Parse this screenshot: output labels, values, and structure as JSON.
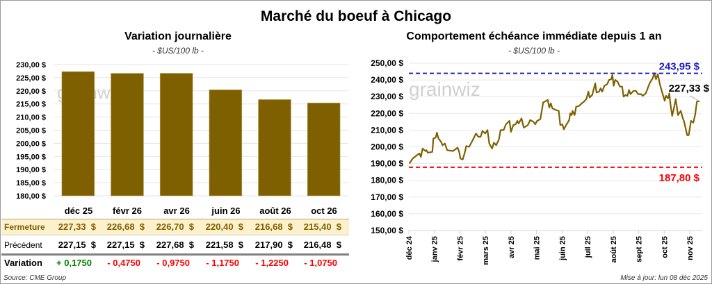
{
  "title": "Marché du boeuf à Chicago",
  "left": {
    "title": "Variation  journalière",
    "unit": "- $US/100 lb -",
    "table": {
      "columns": [
        "déc 25",
        "févr 26",
        "avr 26",
        "juin 26",
        "août 26",
        "oct 26"
      ],
      "rows": [
        {
          "label": "Fermeture",
          "values": [
            "227,33  $",
            "226,68  $",
            "226,70  $",
            "220,40  $",
            "216,68  $",
            "215,40  $"
          ]
        },
        {
          "label": "Précédent",
          "values": [
            "227,15  $",
            "227,15  $",
            "227,68  $",
            "221,58  $",
            "217,90  $",
            "216,48  $"
          ]
        },
        {
          "label": "Variation",
          "values": [
            "+ 0,1750",
            "- 0,4750",
            "- 0,9750",
            "- 1,1750",
            "- 1,2250",
            "- 1,0750"
          ]
        }
      ]
    },
    "source": "Source: CME Group"
  },
  "right": {
    "title": "Comportement échéance immédiate depuis 1 an",
    "unit": "- $US/100 lb -",
    "updated": "Mise à jour: lun 08 déc 2025"
  },
  "watermark": "grainwiz",
  "colors": {
    "bar": "#7f6000",
    "line": "#7f6000",
    "max": "#1f1fbf",
    "min": "#ff0000",
    "positive": "#008000",
    "negative": "#ff0000",
    "highlight": "#fdf1cc"
  },
  "chart_data": [
    {
      "type": "bar",
      "title": "Variation  journalière",
      "categories": [
        "déc 25",
        "févr 26",
        "avr 26",
        "juin 26",
        "août 26",
        "oct 26"
      ],
      "values": [
        227.33,
        226.68,
        226.7,
        220.4,
        216.68,
        215.4
      ],
      "ylim": [
        180,
        230
      ],
      "yticks": [
        "180,00 $",
        "185,00 $",
        "190,00 $",
        "195,00 $",
        "200,00 $",
        "205,00 $",
        "210,00 $",
        "215,00 $",
        "220,00 $",
        "225,00 $",
        "230,00 $"
      ],
      "grid": true
    },
    {
      "type": "line",
      "title": "Comportement échéance immédiate depuis 1 an",
      "xticks": [
        "déc 24",
        "janv 25",
        "févr 25",
        "mars 25",
        "avr 25",
        "mai 25",
        "juin 25",
        "juil 25",
        "août 25",
        "sept 25",
        "oct 25",
        "nov 25"
      ],
      "ylim": [
        150,
        250
      ],
      "yticks": [
        "150,00 $",
        "160,00 $",
        "170,00 $",
        "180,00 $",
        "190,00 $",
        "200,00 $",
        "210,00 $",
        "220,00 $",
        "230,00 $",
        "240,00 $",
        "250,00 $"
      ],
      "grid": true,
      "max": {
        "value": 243.95,
        "label": "243,95 $"
      },
      "min": {
        "value": 187.8,
        "label": "187,80 $"
      },
      "last": {
        "value": 227.33,
        "label": "227,33 $"
      },
      "series": [
        {
          "name": "échéance immédiate",
          "x_months": [
            0.02,
            0.15,
            0.31,
            0.42,
            0.47,
            0.54,
            0.65,
            0.69,
            0.74,
            0.92,
            0.96,
            1.05,
            1.1,
            1.16,
            1.26,
            1.32,
            1.41,
            1.5,
            1.73,
            1.91,
            1.97,
            2.02,
            2.11,
            2.18,
            2.25,
            2.36,
            2.5,
            2.63,
            2.72,
            2.81,
            2.88,
            2.99,
            3.08,
            3.15,
            3.26,
            3.33,
            3.42,
            3.53,
            3.59,
            3.71,
            3.8,
            3.94,
            4.0,
            4.09,
            4.18,
            4.25,
            4.3,
            4.41,
            4.5,
            4.66,
            4.75,
            4.88,
            4.95,
            5.02,
            5.15,
            5.26,
            5.38,
            5.44,
            5.5,
            5.56,
            5.62,
            5.77,
            5.87,
            5.93,
            6.01,
            6.07,
            6.16,
            6.28,
            6.32,
            6.38,
            6.41,
            6.49,
            6.55,
            6.67,
            6.77,
            6.86,
            6.95,
            7.03,
            7.08,
            7.18,
            7.3,
            7.35,
            7.45,
            7.51,
            7.57,
            7.66,
            7.77,
            7.84,
            7.93,
            7.97,
            8.02,
            8.08,
            8.17,
            8.26,
            8.35,
            8.41,
            8.49,
            8.56,
            8.62,
            8.68,
            8.8,
            8.89,
            8.98,
            9.1,
            9.16,
            9.28,
            9.43,
            9.55,
            9.61,
            9.68,
            9.75,
            9.82,
            9.91,
            10.02,
            10.07,
            10.15,
            10.2,
            10.24,
            10.31,
            10.38,
            10.45,
            10.54,
            10.65,
            10.72,
            10.78,
            10.9,
            10.96,
            11.05,
            11.14,
            11.21,
            11.28,
            11.39
          ],
          "values": [
            190,
            193,
            195,
            196,
            194,
            199,
            197.5,
            198,
            196.5,
            197,
            205,
            205.5,
            208.5,
            205,
            203,
            201,
            202,
            198,
            197.5,
            199.5,
            197,
            193,
            192.5,
            196,
            200.5,
            200,
            204,
            208,
            206,
            206,
            209.5,
            208,
            210,
            202,
            199,
            202.5,
            201,
            204.5,
            210,
            210,
            213.5,
            215.5,
            209,
            213,
            213.5,
            215.5,
            214,
            217,
            211.5,
            213,
            216,
            215,
            213.5,
            215.5,
            216.5,
            226.5,
            227.5,
            228,
            223.5,
            226,
            223,
            222,
            221.5,
            213,
            213.5,
            210.5,
            213,
            216,
            220,
            219,
            221.5,
            219,
            224,
            224.5,
            226,
            227,
            228.5,
            233,
            229.5,
            231,
            238,
            232.5,
            233,
            235,
            233,
            236.5,
            237.5,
            240,
            240.5,
            243,
            236.5,
            240,
            239,
            236,
            236,
            230,
            231,
            230.5,
            234,
            231.5,
            233.5,
            233.5,
            231.5,
            231.5,
            230.5,
            232,
            238,
            241,
            244,
            240.5,
            243.5,
            238,
            233,
            227.5,
            230.5,
            229,
            232,
            226,
            218.5,
            223,
            228.5,
            219,
            221.5,
            217.5,
            215,
            207,
            207,
            215.5,
            214.5,
            219,
            227,
            227.33
          ]
        }
      ]
    }
  ]
}
